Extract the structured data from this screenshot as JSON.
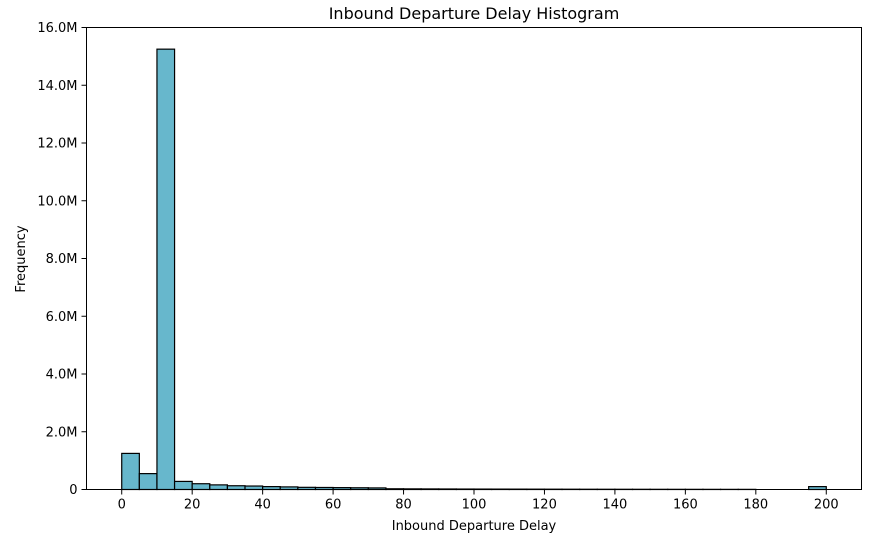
{
  "chart_data": {
    "type": "bar",
    "title": "Inbound Departure Delay Histogram",
    "xlabel": "Inbound Departure Delay",
    "ylabel": "Frequency",
    "xlim": [
      -10,
      210
    ],
    "ylim": [
      0,
      16000000
    ],
    "x_ticks": [
      0,
      20,
      40,
      60,
      80,
      100,
      120,
      140,
      160,
      180,
      200
    ],
    "y_ticks": [
      {
        "value": 0,
        "label": "0"
      },
      {
        "value": 2000000,
        "label": "2.0M"
      },
      {
        "value": 4000000,
        "label": "4.0M"
      },
      {
        "value": 6000000,
        "label": "6.0M"
      },
      {
        "value": 8000000,
        "label": "8.0M"
      },
      {
        "value": 10000000,
        "label": "10.0M"
      },
      {
        "value": 12000000,
        "label": "12.0M"
      },
      {
        "value": 14000000,
        "label": "14.0M"
      },
      {
        "value": 16000000,
        "label": "16.0M"
      }
    ],
    "grid": false,
    "bar_color": "#67b7cc",
    "edge_color": "#000000",
    "bins": [
      {
        "x0": 0,
        "x1": 5,
        "value": 1250000
      },
      {
        "x0": 5,
        "x1": 10,
        "value": 550000
      },
      {
        "x0": 10,
        "x1": 15,
        "value": 15250000
      },
      {
        "x0": 15,
        "x1": 20,
        "value": 280000
      },
      {
        "x0": 20,
        "x1": 25,
        "value": 200000
      },
      {
        "x0": 25,
        "x1": 30,
        "value": 160000
      },
      {
        "x0": 30,
        "x1": 35,
        "value": 130000
      },
      {
        "x0": 35,
        "x1": 40,
        "value": 120000
      },
      {
        "x0": 40,
        "x1": 45,
        "value": 100000
      },
      {
        "x0": 45,
        "x1": 50,
        "value": 90000
      },
      {
        "x0": 50,
        "x1": 55,
        "value": 75000
      },
      {
        "x0": 55,
        "x1": 60,
        "value": 70000
      },
      {
        "x0": 60,
        "x1": 65,
        "value": 65000
      },
      {
        "x0": 65,
        "x1": 70,
        "value": 60000
      },
      {
        "x0": 70,
        "x1": 75,
        "value": 55000
      },
      {
        "x0": 75,
        "x1": 80,
        "value": 25000
      },
      {
        "x0": 80,
        "x1": 85,
        "value": 22000
      },
      {
        "x0": 85,
        "x1": 90,
        "value": 20000
      },
      {
        "x0": 90,
        "x1": 95,
        "value": 18000
      },
      {
        "x0": 95,
        "x1": 100,
        "value": 16000
      },
      {
        "x0": 100,
        "x1": 105,
        "value": 15000
      },
      {
        "x0": 105,
        "x1": 110,
        "value": 14000
      },
      {
        "x0": 110,
        "x1": 115,
        "value": 13000
      },
      {
        "x0": 115,
        "x1": 120,
        "value": 12000
      },
      {
        "x0": 120,
        "x1": 125,
        "value": 11000
      },
      {
        "x0": 125,
        "x1": 130,
        "value": 10000
      },
      {
        "x0": 130,
        "x1": 135,
        "value": 9000
      },
      {
        "x0": 135,
        "x1": 140,
        "value": 8500
      },
      {
        "x0": 140,
        "x1": 145,
        "value": 8000
      },
      {
        "x0": 145,
        "x1": 150,
        "value": 7500
      },
      {
        "x0": 150,
        "x1": 155,
        "value": 7000
      },
      {
        "x0": 155,
        "x1": 160,
        "value": 6500
      },
      {
        "x0": 160,
        "x1": 165,
        "value": 6000
      },
      {
        "x0": 165,
        "x1": 170,
        "value": 5500
      },
      {
        "x0": 170,
        "x1": 175,
        "value": 5000
      },
      {
        "x0": 175,
        "x1": 180,
        "value": 5000
      },
      {
        "x0": 195,
        "x1": 200,
        "value": 100000
      }
    ]
  }
}
